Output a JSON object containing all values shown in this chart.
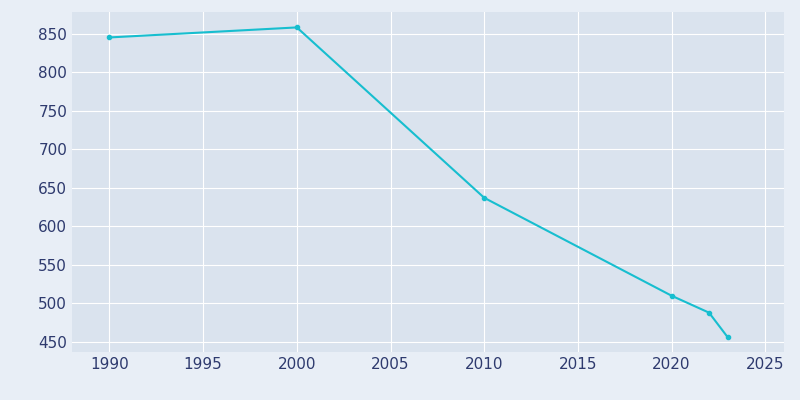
{
  "years": [
    1990,
    2000,
    2010,
    2020,
    2022,
    2023
  ],
  "population": [
    845,
    858,
    637,
    510,
    488,
    456
  ],
  "line_color": "#17BECF",
  "marker": "o",
  "marker_size": 3,
  "line_width": 1.5,
  "bg_color": "#E8EEF6",
  "plot_bg_color": "#DAE3EE",
  "grid_color": "#FFFFFF",
  "tick_color": "#2E3A6E",
  "xlim": [
    1988,
    2026
  ],
  "ylim": [
    437,
    878
  ],
  "xticks": [
    1990,
    1995,
    2000,
    2005,
    2010,
    2015,
    2020,
    2025
  ],
  "yticks": [
    450,
    500,
    550,
    600,
    650,
    700,
    750,
    800,
    850
  ]
}
